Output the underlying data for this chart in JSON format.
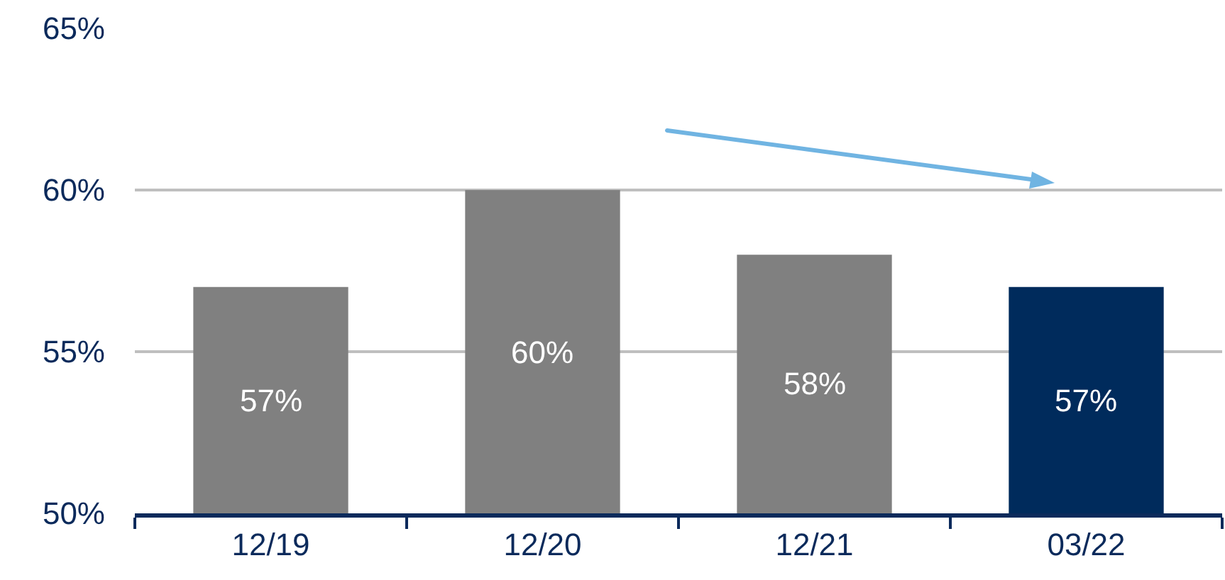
{
  "chart_data": {
    "type": "bar",
    "categories": [
      "12/19",
      "12/20",
      "12/21",
      "03/22"
    ],
    "values": [
      57,
      60,
      58,
      57
    ],
    "colors": [
      "#808080",
      "#808080",
      "#808080",
      "#002b5c"
    ],
    "value_labels": [
      "57%",
      "60%",
      "58%",
      "57%"
    ],
    "ylim": [
      50,
      65
    ],
    "yticks": [
      {
        "value": 50,
        "label": "50%"
      },
      {
        "value": 55,
        "label": "55%"
      },
      {
        "value": 60,
        "label": "60%"
      },
      {
        "value": 65,
        "label": "65%"
      }
    ],
    "grid": "y"
  }
}
